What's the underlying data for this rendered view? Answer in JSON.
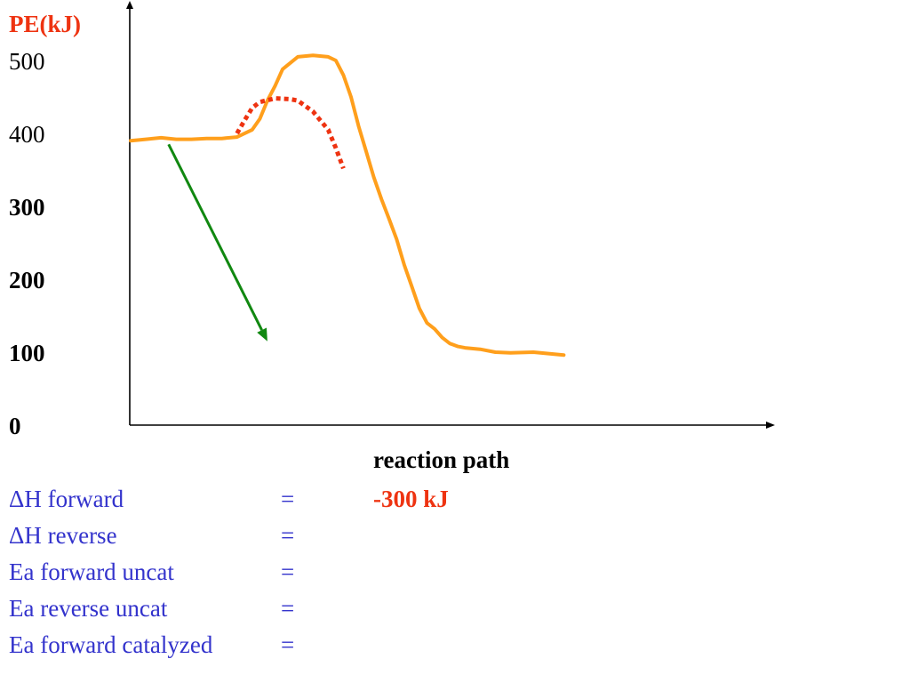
{
  "colors": {
    "uncatalyzed": "#ff9f1c",
    "catalyzed": "#ee3311",
    "arrow": "#118811",
    "question_text": "#3333cc",
    "answer_text": "#ee3311"
  },
  "chart_data": {
    "type": "line",
    "ylabel": "PE(kJ)",
    "xlabel": "reaction path",
    "ylim": [
      0,
      500
    ],
    "yticks": [
      "500",
      "400",
      "300",
      "200",
      "100",
      "0"
    ],
    "grid": false,
    "series": [
      {
        "style": "solid",
        "color": "#ff9f1c",
        "points": [
          [
            0,
            390
          ],
          [
            2,
            392
          ],
          [
            4,
            394
          ],
          [
            6,
            392
          ],
          [
            8,
            392
          ],
          [
            10,
            393
          ],
          [
            12,
            393
          ],
          [
            14,
            395
          ],
          [
            16,
            405
          ],
          [
            17,
            420
          ],
          [
            18,
            445
          ],
          [
            19,
            465
          ],
          [
            20,
            488
          ],
          [
            22,
            505
          ],
          [
            24,
            507
          ],
          [
            26,
            505
          ],
          [
            27,
            500
          ],
          [
            28,
            480
          ],
          [
            29,
            450
          ],
          [
            30,
            410
          ],
          [
            31,
            375
          ],
          [
            32,
            340
          ],
          [
            33,
            310
          ],
          [
            34,
            283
          ],
          [
            35,
            255
          ],
          [
            36,
            220
          ],
          [
            37,
            190
          ],
          [
            38,
            160
          ],
          [
            39,
            140
          ],
          [
            40,
            132
          ],
          [
            41,
            120
          ],
          [
            42,
            112
          ],
          [
            43,
            108
          ],
          [
            44,
            106
          ],
          [
            46,
            104
          ],
          [
            48,
            100
          ],
          [
            50,
            99
          ],
          [
            53,
            100
          ],
          [
            57,
            96
          ]
        ]
      },
      {
        "style": "dotted",
        "color": "#ee3311",
        "points": [
          [
            14,
            400
          ],
          [
            15,
            418
          ],
          [
            16,
            435
          ],
          [
            17,
            443
          ],
          [
            19,
            448
          ],
          [
            21,
            447
          ],
          [
            22,
            445
          ],
          [
            24,
            430
          ],
          [
            26,
            405
          ],
          [
            27,
            380
          ],
          [
            28,
            352
          ]
        ]
      }
    ],
    "annotations": [
      {
        "type": "arrow",
        "color": "#118811",
        "from": [
          5,
          385
        ],
        "to": [
          18,
          115
        ]
      }
    ]
  },
  "questions": [
    {
      "label": "ΔH forward",
      "eq": "=",
      "value": "-300 kJ"
    },
    {
      "label": "ΔH reverse",
      "eq": "=",
      "value": ""
    },
    {
      "label": "Ea forward uncat",
      "eq": "=",
      "value": ""
    },
    {
      "label": "Ea reverse uncat",
      "eq": "=",
      "value": ""
    },
    {
      "label": "Ea forward catalyzed",
      "eq": "=",
      "value": ""
    }
  ]
}
